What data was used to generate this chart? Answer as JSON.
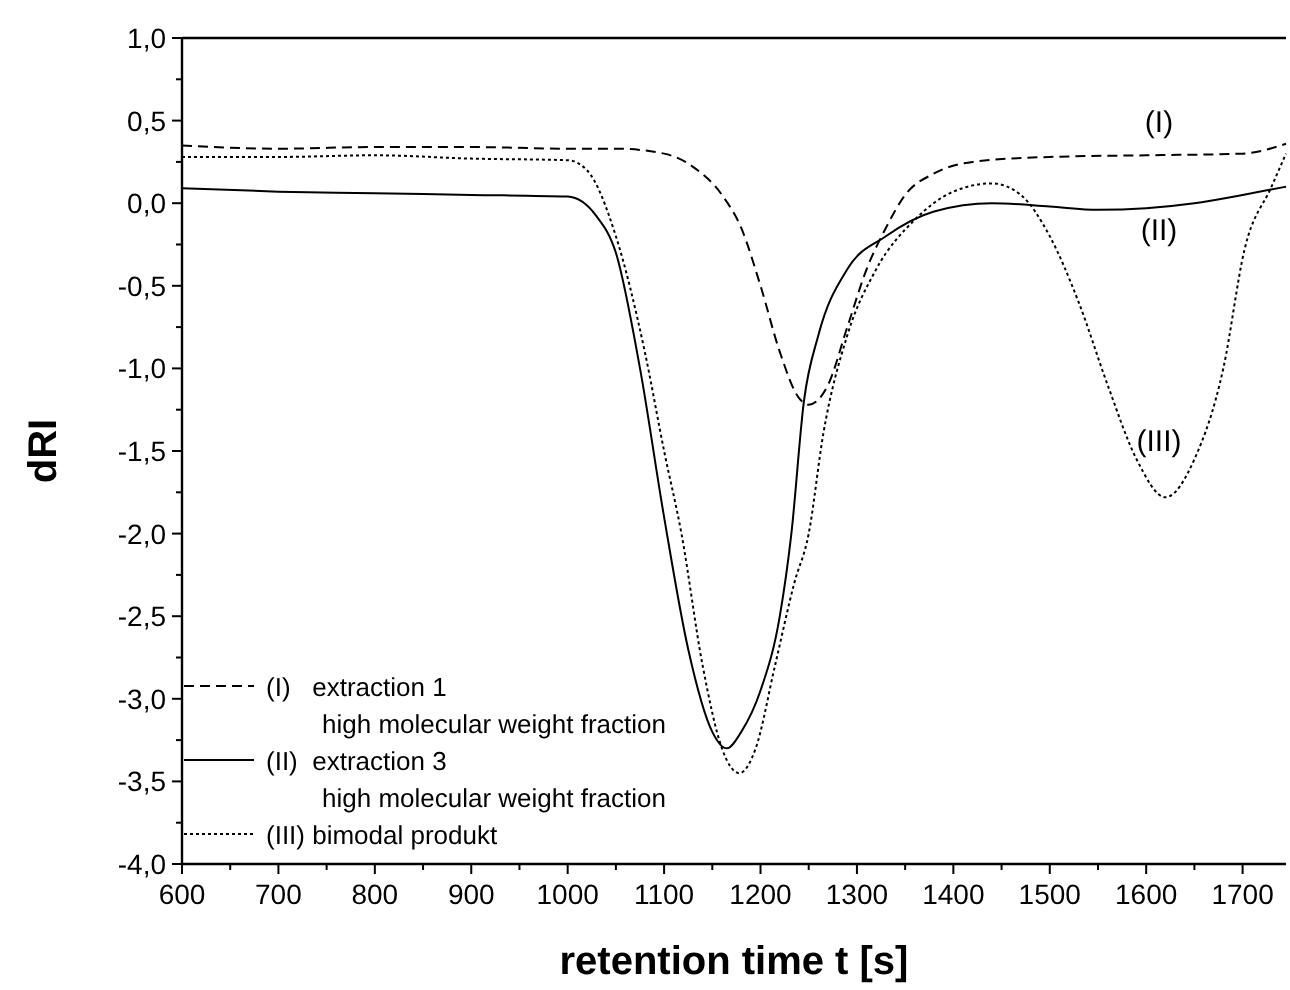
{
  "chart_data": {
    "type": "line",
    "xlabel": "retention time t [s]",
    "ylabel": "dRI",
    "xlim": [
      600,
      1745
    ],
    "ylim": [
      -4,
      1
    ],
    "xticks": [
      600,
      {
        "value": 650,
        "label": null
      },
      700,
      {
        "value": 750,
        "label": null
      },
      800,
      {
        "value": 850,
        "label": null
      },
      900,
      {
        "value": 950,
        "label": null
      },
      1000,
      {
        "value": 1050,
        "label": null
      },
      1100,
      {
        "value": 1150,
        "label": null
      },
      1200,
      {
        "value": 1250,
        "label": null
      },
      1300,
      {
        "value": 1350,
        "label": null
      },
      1400,
      {
        "value": 1450,
        "label": null
      },
      1500,
      {
        "value": 1550,
        "label": null
      },
      1600,
      {
        "value": 1650,
        "label": null
      },
      1700
    ],
    "yticks": [
      {
        "value": -4,
        "label": "-4,0"
      },
      {
        "value": -3.75,
        "label": null
      },
      {
        "value": -3.5,
        "label": "-3,5"
      },
      {
        "value": -3.25,
        "label": null
      },
      {
        "value": -3,
        "label": "-3,0"
      },
      {
        "value": -2.75,
        "label": null
      },
      {
        "value": -2.5,
        "label": "-2,5"
      },
      {
        "value": -2.25,
        "label": null
      },
      {
        "value": -2,
        "label": "-2,0"
      },
      {
        "value": -1.75,
        "label": null
      },
      {
        "value": -1.5,
        "label": "-1,5"
      },
      {
        "value": -1.25,
        "label": null
      },
      {
        "value": -1,
        "label": "-1,0"
      },
      {
        "value": -0.75,
        "label": null
      },
      {
        "value": -0.5,
        "label": "-0,5"
      },
      {
        "value": -0.25,
        "label": null
      },
      {
        "value": 0,
        "label": "0,0"
      },
      {
        "value": 0.25,
        "label": null
      },
      {
        "value": 0.5,
        "label": "0,5"
      },
      {
        "value": 0.75,
        "label": null
      },
      {
        "value": 1,
        "label": "1,0"
      }
    ],
    "grid": false,
    "legend": "bottom left",
    "annotations": [
      "(I)",
      "(II)",
      "(III)"
    ],
    "series": [
      {
        "name": "(I)   extraction 1\nhigh molecular weight fraction",
        "color": "#000000",
        "line_style": "dashed",
        "x": [
          600,
          700,
          800,
          900,
          1000,
          1050,
          1100,
          1130,
          1160,
          1180,
          1200,
          1220,
          1240,
          1250,
          1270,
          1290,
          1310,
          1330,
          1350,
          1380,
          1420,
          1500,
          1600,
          1700,
          1745
        ],
        "values": [
          0.35,
          0.33,
          0.34,
          0.34,
          0.33,
          0.33,
          0.3,
          0.22,
          0.05,
          -0.15,
          -0.5,
          -0.9,
          -1.18,
          -1.22,
          -1.1,
          -0.75,
          -0.4,
          -0.15,
          0.05,
          0.18,
          0.25,
          0.28,
          0.29,
          0.3,
          0.36
        ]
      },
      {
        "name": "(II)  extraction 3\nhigh molecular weight fraction",
        "color": "#000000",
        "line_style": "solid",
        "x": [
          600,
          700,
          800,
          900,
          1000,
          1030,
          1050,
          1075,
          1100,
          1125,
          1150,
          1165,
          1180,
          1200,
          1220,
          1232,
          1245,
          1260,
          1290,
          1330,
          1380,
          1440,
          1500,
          1550,
          1600,
          1650,
          1700,
          1745
        ],
        "values": [
          0.09,
          0.07,
          0.06,
          0.05,
          0.04,
          -0.08,
          -0.3,
          -1.0,
          -1.9,
          -2.7,
          -3.2,
          -3.3,
          -3.2,
          -2.95,
          -2.5,
          -2.0,
          -1.2,
          -0.8,
          -0.4,
          -0.2,
          -0.05,
          0.0,
          -0.02,
          -0.04,
          -0.03,
          0.0,
          0.05,
          0.1
        ]
      },
      {
        "name": "(III) bimodal produkt",
        "color": "#000000",
        "line_style": "dotted",
        "x": [
          600,
          700,
          800,
          900,
          1000,
          1020,
          1050,
          1080,
          1100,
          1118,
          1140,
          1160,
          1178,
          1195,
          1215,
          1235,
          1250,
          1265,
          1290,
          1320,
          1360,
          1400,
          1440,
          1470,
          1500,
          1530,
          1560,
          1590,
          1620,
          1650,
          1680,
          1702,
          1730,
          1745
        ],
        "values": [
          0.28,
          0.28,
          0.29,
          0.27,
          0.26,
          0.2,
          -0.2,
          -0.9,
          -1.5,
          -2.0,
          -2.8,
          -3.3,
          -3.45,
          -3.3,
          -2.8,
          -2.3,
          -2.0,
          -1.4,
          -0.8,
          -0.4,
          -0.1,
          0.07,
          0.12,
          0.05,
          -0.2,
          -0.6,
          -1.1,
          -1.55,
          -1.78,
          -1.55,
          -1.0,
          -0.28,
          0.1,
          0.3
        ]
      }
    ]
  }
}
